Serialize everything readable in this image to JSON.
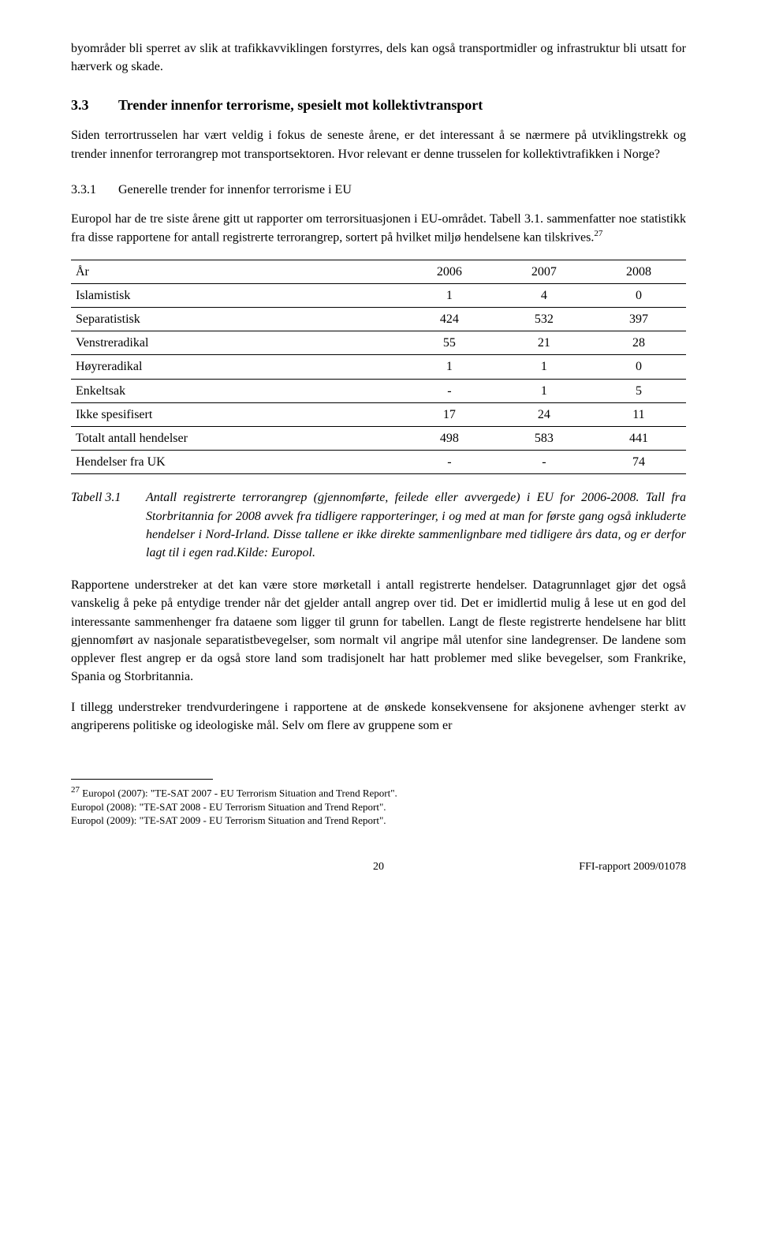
{
  "intro_para": "byområder bli sperret av slik at trafikkavviklingen forstyrres, dels kan også transportmidler og infrastruktur bli utsatt for hærverk og skade.",
  "sec33": {
    "num": "3.3",
    "title": "Trender innenfor terrorisme, spesielt mot kollektivtransport",
    "para": "Siden terrortrusselen har vært veldig i fokus de seneste årene, er det interessant å se nærmere på utviklingstrekk og trender innenfor terrorangrep mot transportsektoren. Hvor relevant er denne trusselen for kollektivtrafikken i Norge?"
  },
  "sec331": {
    "num": "3.3.1",
    "title": "Generelle trender for innenfor terrorisme i EU",
    "para_pre": "Europol har de tre siste årene gitt ut rapporter om terrorsituasjonen i EU-området. Tabell 3.1. sammenfatter noe statistikk fra disse rapportene for antall registrerte terrorangrep, sortert på hvilket miljø hendelsene kan tilskrives.",
    "fn_ref": "27"
  },
  "table": {
    "header": {
      "c0": "År",
      "c1": "2006",
      "c2": "2007",
      "c3": "2008"
    },
    "rows": [
      {
        "c0": "Islamistisk",
        "c1": "1",
        "c2": "4",
        "c3": "0"
      },
      {
        "c0": "Separatistisk",
        "c1": "424",
        "c2": "532",
        "c3": "397"
      },
      {
        "c0": "Venstreradikal",
        "c1": "55",
        "c2": "21",
        "c3": "28"
      },
      {
        "c0": "Høyreradikal",
        "c1": "1",
        "c2": "1",
        "c3": "0"
      },
      {
        "c0": "Enkeltsak",
        "c1": "-",
        "c2": "1",
        "c3": "5"
      },
      {
        "c0": "Ikke spesifisert",
        "c1": "17",
        "c2": "24",
        "c3": "11"
      },
      {
        "c0": "Totalt antall hendelser",
        "c1": "498",
        "c2": "583",
        "c3": "441"
      },
      {
        "c0": "Hendelser fra UK",
        "c1": "-",
        "c2": "-",
        "c3": "74"
      }
    ]
  },
  "caption": {
    "label": "Tabell 3.1",
    "text": "Antall registrerte terrorangrep (gjennomførte, feilede eller avvergede) i EU for 2006-2008. Tall fra Storbritannia for 2008 avvek fra tidligere rapporteringer, i og med at man for første gang også inkluderte hendelser i Nord-Irland. Disse tallene er ikke direkte sammenlignbare med tidligere års data, og er derfor lagt til i egen rad.Kilde: Europol."
  },
  "para_after_table": "Rapportene understreker at det kan være store mørketall i antall registrerte hendelser. Datagrunnlaget gjør det også vanskelig å peke på entydige trender når det gjelder antall angrep over tid. Det er imidlertid mulig å lese ut en god del interessante sammenhenger fra dataene som ligger til grunn for tabellen. Langt de fleste registrerte hendelsene har blitt gjennomført av nasjonale separatistbevegelser, som normalt vil angripe mål utenfor sine landegrenser. De landene som opplever flest angrep er da også store land som tradisjonelt har hatt problemer med slike bevegelser, som Frankrike, Spania og Storbritannia.",
  "para_last": "I tillegg understreker trendvurderingene i rapportene at de ønskede konsekvensene for aksjonene avhenger sterkt av angriperens politiske og ideologiske mål. Selv om flere av gruppene som er",
  "footnote27": {
    "num": "27",
    "l1": " Europol (2007): \"TE-SAT 2007 - EU Terrorism Situation and Trend Report\".",
    "l2": "Europol (2008): \"TE-SAT 2008 - EU Terrorism Situation and Trend Report\".",
    "l3": "Europol (2009): \"TE-SAT 2009 - EU Terrorism Situation and Trend Report\"."
  },
  "footer": {
    "page": "20",
    "report": "FFI-rapport 2009/01078"
  }
}
